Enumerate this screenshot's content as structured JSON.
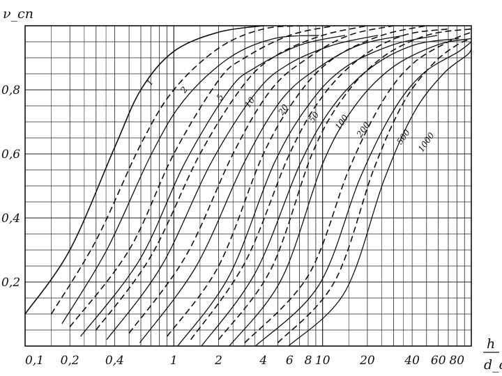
{
  "chart_data": {
    "type": "line",
    "title": "",
    "ylabel": "ν_сп",
    "xlabel_num": "h",
    "xlabel_den": "d_c",
    "x_scale": "log",
    "xlim": [
      0.1,
      100
    ],
    "ylim": [
      0,
      1.0
    ],
    "grid": true,
    "x_ticks": [
      {
        "value": 0.1,
        "label": "0,1"
      },
      {
        "value": 0.2,
        "label": "0,2"
      },
      {
        "value": 0.4,
        "label": "0,4"
      },
      {
        "value": 1,
        "label": "1"
      },
      {
        "value": 2,
        "label": "2"
      },
      {
        "value": 4,
        "label": "4"
      },
      {
        "value": 6,
        "label": "6"
      },
      {
        "value": 8,
        "label": "8"
      },
      {
        "value": 10,
        "label": "10"
      },
      {
        "value": 20,
        "label": "20"
      },
      {
        "value": 40,
        "label": "40"
      },
      {
        "value": 60,
        "label": "60"
      },
      {
        "value": 80,
        "label": "80"
      }
    ],
    "y_ticks": [
      {
        "value": 0.2,
        "label": "0,2"
      },
      {
        "value": 0.4,
        "label": "0,4"
      },
      {
        "value": 0.6,
        "label": "0,6"
      },
      {
        "value": 0.8,
        "label": "0,8"
      }
    ],
    "series": [
      {
        "name": "1",
        "style": "solid",
        "x": [
          0.1,
          0.2,
          0.4,
          0.6,
          1,
          2,
          4
        ],
        "y": [
          0.1,
          0.3,
          0.62,
          0.8,
          0.92,
          0.98,
          1.0
        ]
      },
      {
        "name": "2",
        "style": "dashed",
        "x": [
          0.15,
          0.3,
          0.6,
          1,
          2,
          4,
          8
        ],
        "y": [
          0.1,
          0.33,
          0.63,
          0.8,
          0.93,
          0.99,
          1.0
        ]
      },
      {
        "name": "5",
        "style": "dashed",
        "x": [
          0.2,
          0.5,
          1,
          2,
          3,
          6,
          12
        ],
        "y": [
          0.06,
          0.3,
          0.6,
          0.83,
          0.9,
          0.97,
          1.0
        ]
      },
      {
        "name": "10",
        "style": "dashed",
        "x": [
          0.3,
          0.7,
          1.5,
          3,
          5,
          10,
          20
        ],
        "y": [
          0.05,
          0.28,
          0.6,
          0.82,
          0.91,
          0.97,
          1.0
        ]
      },
      {
        "name": "20",
        "style": "dashed",
        "x": [
          0.5,
          1.2,
          2.5,
          4.5,
          8,
          15,
          30
        ],
        "y": [
          0.04,
          0.28,
          0.6,
          0.8,
          0.9,
          0.97,
          1.0
        ]
      },
      {
        "name": "50",
        "style": "dashed",
        "x": [
          0.9,
          2,
          4,
          7,
          12,
          25,
          50
        ],
        "y": [
          0.03,
          0.25,
          0.6,
          0.79,
          0.9,
          0.97,
          1.0
        ]
      },
      {
        "name": "100",
        "style": "dashed",
        "x": [
          1.3,
          3,
          6,
          10,
          18,
          35,
          70
        ],
        "y": [
          0.02,
          0.26,
          0.6,
          0.78,
          0.9,
          0.97,
          0.99
        ]
      },
      {
        "name": "200",
        "style": "dashed",
        "x": [
          2,
          4.5,
          8.5,
          14,
          25,
          50,
          100
        ],
        "y": [
          0.02,
          0.24,
          0.6,
          0.78,
          0.9,
          0.97,
          0.99
        ]
      },
      {
        "name": "500",
        "style": "dashed",
        "x": [
          3,
          8,
          15,
          25,
          40,
          70,
          100
        ],
        "y": [
          0.01,
          0.22,
          0.55,
          0.76,
          0.88,
          0.95,
          0.98
        ]
      },
      {
        "name": "1000",
        "style": "dashed",
        "x": [
          5,
          12,
          22,
          35,
          55,
          80,
          100
        ],
        "y": [
          0.01,
          0.2,
          0.55,
          0.76,
          0.88,
          0.94,
          0.96
        ]
      }
    ]
  }
}
